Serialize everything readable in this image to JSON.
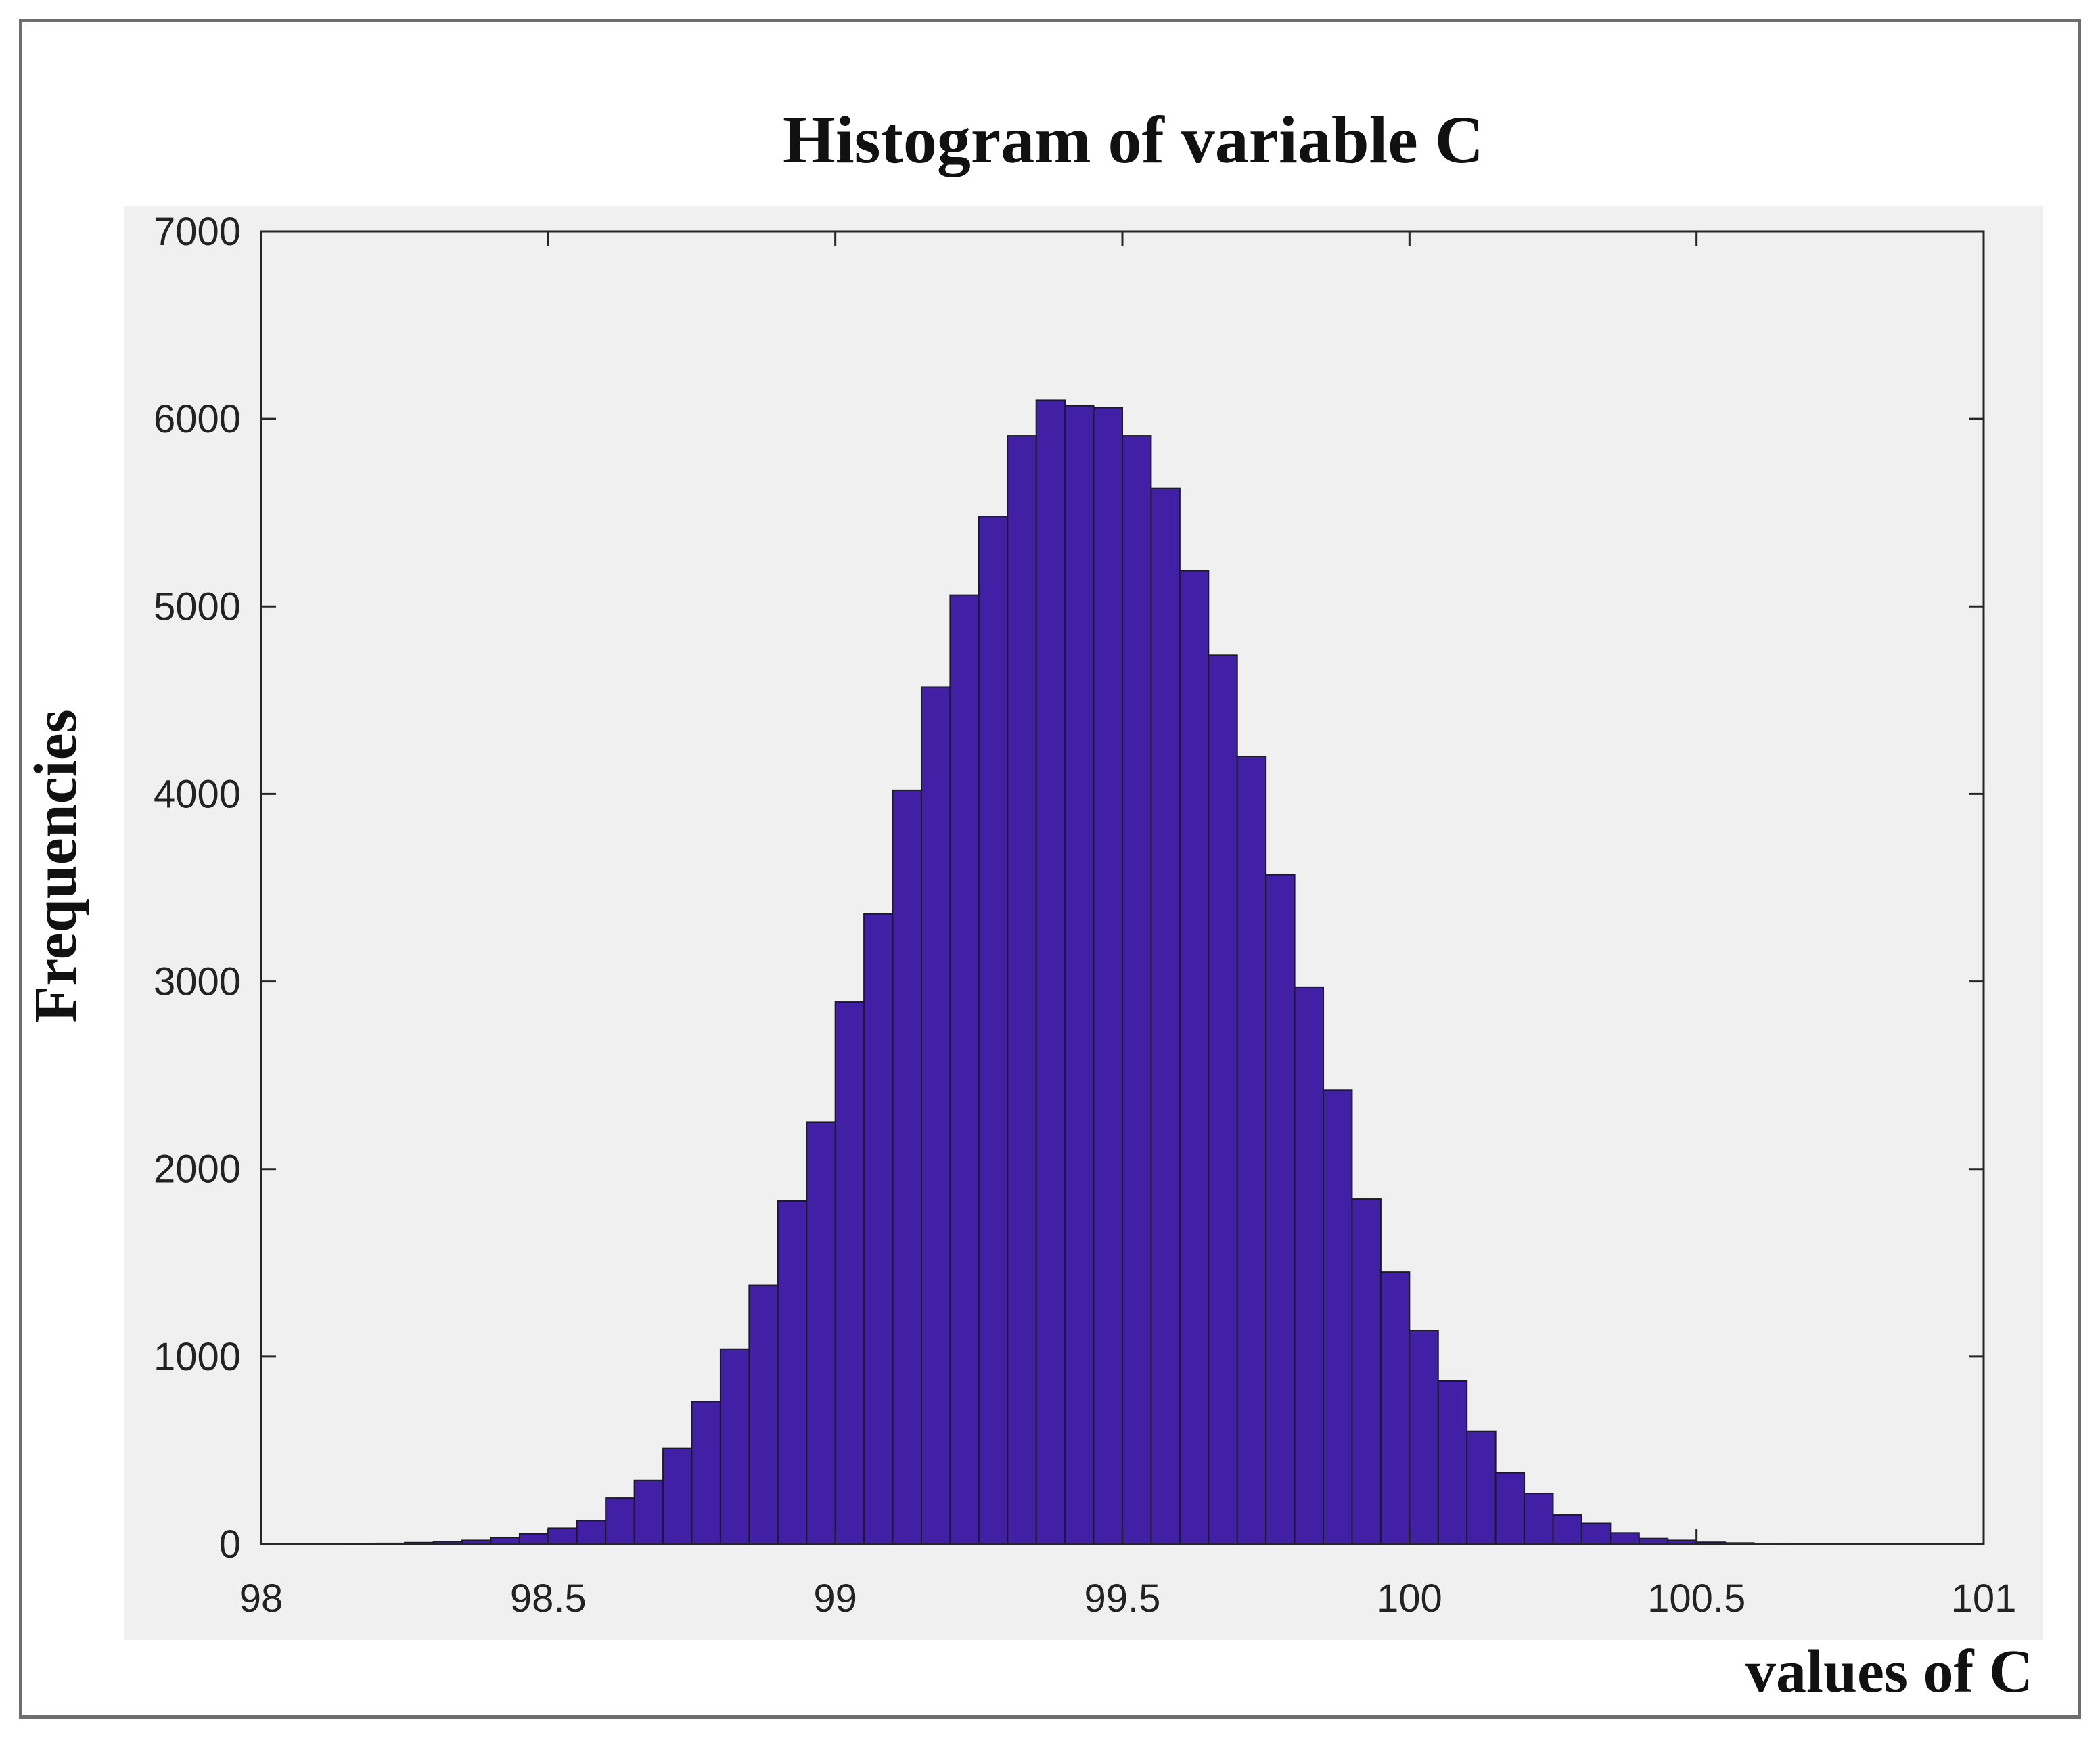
{
  "chart_data": {
    "type": "bar",
    "title": "Histogram of variable C",
    "xlabel": "values of C",
    "ylabel": "Frequencies",
    "xlim": [
      98,
      101
    ],
    "ylim": [
      0,
      7000
    ],
    "xticks": [
      "98",
      "98.5",
      "99",
      "99.5",
      "100",
      "100.5",
      "101"
    ],
    "yticks": [
      "0",
      "1000",
      "2000",
      "3000",
      "4000",
      "5000",
      "6000",
      "7000"
    ],
    "bin_width": 0.05,
    "bin_start": 98.15,
    "values": [
      2,
      4,
      8,
      13,
      20,
      35,
      55,
      85,
      125,
      245,
      340,
      510,
      760,
      1040,
      1380,
      1830,
      2250,
      2890,
      3360,
      4020,
      4570,
      5060,
      5480,
      5910,
      6100,
      6070,
      6060,
      5910,
      5630,
      5190,
      4740,
      4200,
      3570,
      2970,
      2420,
      1840,
      1450,
      1140,
      870,
      600,
      380,
      270,
      155,
      110,
      60,
      30,
      20,
      10,
      6,
      3
    ],
    "bar_color": "#4120a5",
    "grid": false
  }
}
